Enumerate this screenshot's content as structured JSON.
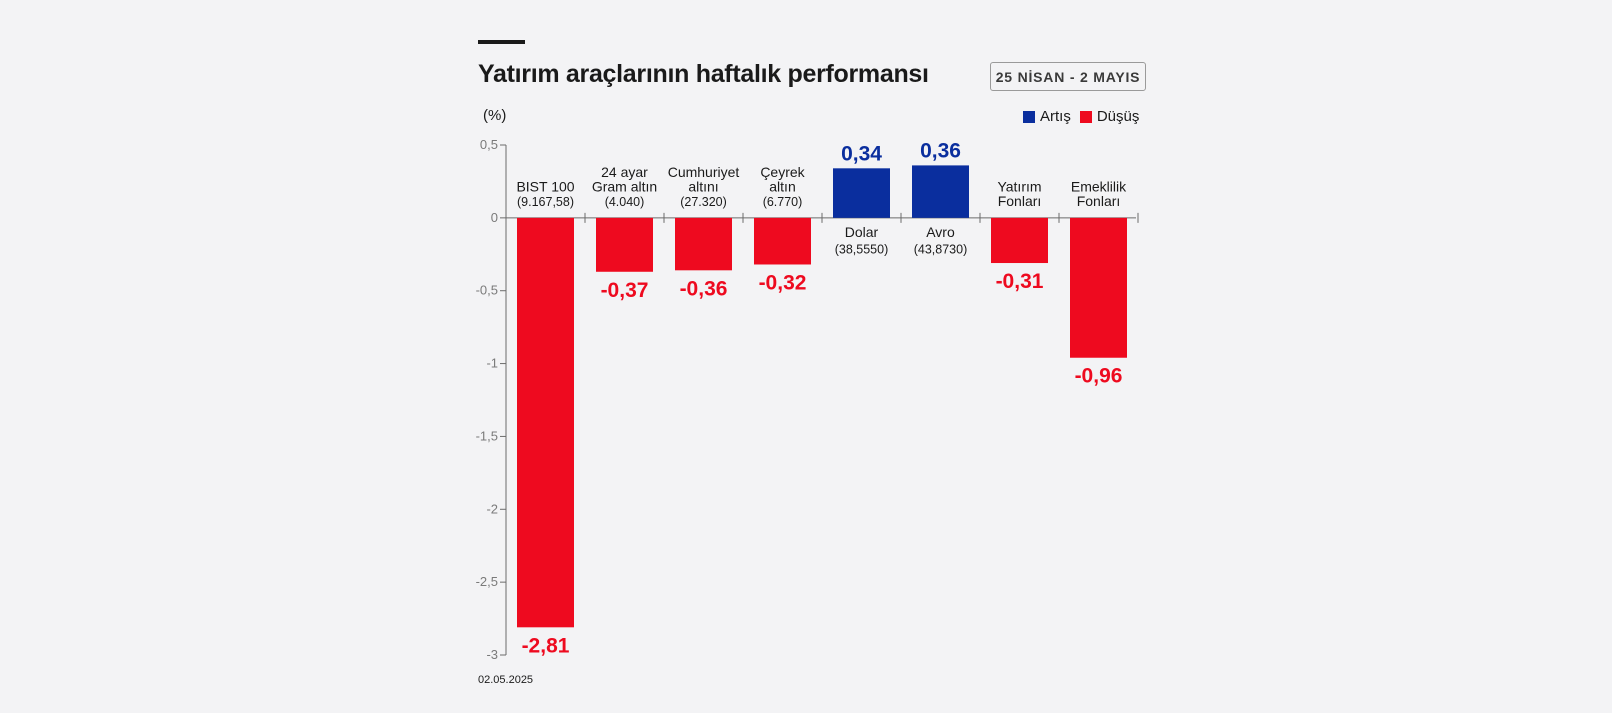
{
  "header": {
    "title": "Yatırım araçlarının haftalık performansı",
    "date_range": "25 NİSAN - 2 MAYIS",
    "unit": "(%)"
  },
  "legend": [
    {
      "label": "Artış",
      "color": "#0a2e9e"
    },
    {
      "label": "Düşüş",
      "color": "#ee0a1f"
    }
  ],
  "footer": {
    "date": "02.05.2025"
  },
  "chart_data": {
    "type": "bar",
    "ylim": [
      -3,
      0.5
    ],
    "yticks": [
      {
        "value": 0.5,
        "label": "0,5"
      },
      {
        "value": 0,
        "label": "0"
      },
      {
        "value": -0.5,
        "label": "-0,5"
      },
      {
        "value": -1,
        "label": "-1"
      },
      {
        "value": -1.5,
        "label": "-1,5"
      },
      {
        "value": -2,
        "label": "-2"
      },
      {
        "value": -2.5,
        "label": "-2,5"
      },
      {
        "value": -3,
        "label": "-3"
      }
    ],
    "grid": false,
    "legend_position": "top-right",
    "colors": {
      "positive": "#0a2e9e",
      "negative": "#ee0a1f"
    },
    "categories": [
      {
        "name": [
          "BIST 100"
        ],
        "sub": "(9.167,58)",
        "value": -2.81,
        "value_label": "-2,81"
      },
      {
        "name": [
          "24 ayar",
          "Gram altın"
        ],
        "sub": "(4.040)",
        "value": -0.37,
        "value_label": "-0,37"
      },
      {
        "name": [
          "Cumhuriyet",
          "altını"
        ],
        "sub": "(27.320)",
        "value": -0.36,
        "value_label": "-0,36"
      },
      {
        "name": [
          "Çeyrek",
          "altın"
        ],
        "sub": "(6.770)",
        "value": -0.32,
        "value_label": "-0,32"
      },
      {
        "name": [
          "Dolar"
        ],
        "sub": "(38,5550)",
        "value": 0.34,
        "value_label": "0,34"
      },
      {
        "name": [
          "Avro"
        ],
        "sub": "(43,8730)",
        "value": 0.36,
        "value_label": "0,36"
      },
      {
        "name": [
          "Yatırım",
          "Fonları"
        ],
        "sub": "",
        "value": -0.31,
        "value_label": "-0,31"
      },
      {
        "name": [
          "Emeklilik",
          "Fonları"
        ],
        "sub": "",
        "value": -0.96,
        "value_label": "-0,96"
      }
    ]
  }
}
